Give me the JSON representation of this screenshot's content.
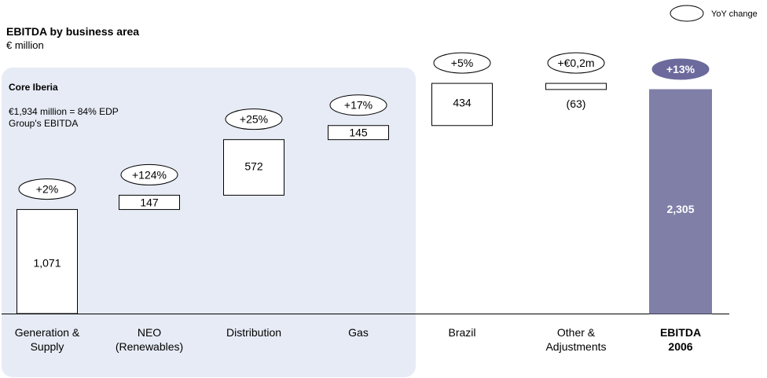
{
  "header": {
    "title": "EBITDA by business area",
    "unit": "€ million"
  },
  "legend": {
    "label": "YoY change"
  },
  "core_box": {
    "title": "Core Iberia",
    "note_line1": "€1,934 million = 84% EDP",
    "note_line2": "Group's EBITDA"
  },
  "colors": {
    "core_box_fill": "#e6ebf5",
    "total_bar_fill": "#7f7fa8",
    "total_ellipse_fill": "#6c6a9c",
    "bar_fill": "#ffffff",
    "stroke": "#000000"
  },
  "chart_data": {
    "type": "waterfall",
    "title": "EBITDA by business area",
    "ylabel": "€ million",
    "categories": [
      [
        "Generation &",
        "Supply"
      ],
      [
        "NEO",
        "(Renewables)"
      ],
      [
        "Distribution"
      ],
      [
        "Gas"
      ],
      [
        "Brazil"
      ],
      [
        "Other &",
        "Adjustments"
      ],
      [
        "EBITDA",
        "2006"
      ]
    ],
    "values": [
      1071,
      147,
      572,
      145,
      434,
      -63,
      2305
    ],
    "value_labels": [
      "1,071",
      "147",
      "572",
      "145",
      "434",
      "(63)",
      "2,305"
    ],
    "yoy_change": [
      "+2%",
      "+124%",
      "+25%",
      "+17%",
      "+5%",
      "+€0,2m",
      "+13%"
    ],
    "total_index": 6,
    "ylim": [
      0,
      2400
    ],
    "grid": false
  }
}
